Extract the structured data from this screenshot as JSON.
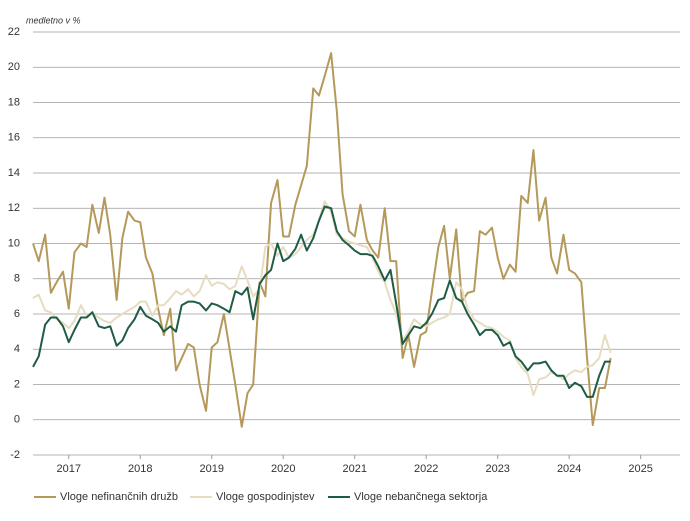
{
  "chart_data": {
    "type": "line",
    "y_label": "medletno v %",
    "x": [
      2016.5,
      2016.58,
      2016.67,
      2016.75,
      2016.83,
      2016.92,
      2017.0,
      2017.08,
      2017.17,
      2017.25,
      2017.33,
      2017.42,
      2017.5,
      2017.58,
      2017.67,
      2017.75,
      2017.83,
      2017.92,
      2018.0,
      2018.08,
      2018.17,
      2018.25,
      2018.33,
      2018.42,
      2018.5,
      2018.58,
      2018.67,
      2018.75,
      2018.83,
      2018.92,
      2019.0,
      2019.08,
      2019.17,
      2019.25,
      2019.33,
      2019.42,
      2019.5,
      2019.58,
      2019.67,
      2019.75,
      2019.83,
      2019.92,
      2020.0,
      2020.08,
      2020.17,
      2020.25,
      2020.33,
      2020.42,
      2020.5,
      2020.58,
      2020.67,
      2020.75,
      2020.83,
      2020.92,
      2021.0,
      2021.08,
      2021.17,
      2021.25,
      2021.33,
      2021.42,
      2021.5,
      2021.58,
      2021.67,
      2021.75,
      2021.83,
      2021.92,
      2022.0,
      2022.08,
      2022.17,
      2022.25,
      2022.33,
      2022.42,
      2022.5,
      2022.58,
      2022.67,
      2022.75,
      2022.83,
      2022.92,
      2023.0,
      2023.08,
      2023.17,
      2023.25,
      2023.33,
      2023.42,
      2023.5,
      2023.58,
      2023.67,
      2023.75,
      2023.83,
      2023.92,
      2024.0,
      2024.08,
      2024.17,
      2024.25,
      2024.33,
      2024.42,
      2024.5,
      2024.58
    ],
    "series": [
      {
        "name": "Vloge nefinančnih družb",
        "color": "#b5995a",
        "values": [
          10,
          9,
          10.5,
          7.2,
          7.8,
          8.4,
          6.3,
          9.5,
          10,
          9.8,
          12.2,
          10.6,
          12.6,
          10.5,
          6.8,
          10.3,
          11.8,
          11.3,
          11.2,
          9.2,
          8.3,
          6.3,
          4.8,
          6.3,
          2.8,
          3.5,
          4.3,
          4.1,
          2.0,
          0.5,
          4.1,
          4.4,
          6.0,
          4.0,
          2.0,
          -0.4,
          1.5,
          2.0,
          7.8,
          7.0,
          12.3,
          13.6,
          10.4,
          10.4,
          12.2,
          13.3,
          14.4,
          18.8,
          18.4,
          19.5,
          20.8,
          17.5,
          12.8,
          10.7,
          10.4,
          12.2,
          10.2,
          9.6,
          9.2,
          12.0,
          9.0,
          9.0,
          3.5,
          4.8,
          3.0,
          4.8,
          5.0,
          7.3,
          9.8,
          11.0,
          8.0,
          10.8,
          6.7,
          7.2,
          7.3,
          10.7,
          10.5,
          10.9,
          9.2,
          8.0,
          8.8,
          8.4,
          12.7,
          12.3,
          15.3,
          11.3,
          12.6,
          9.2,
          8.3,
          10.5,
          8.5,
          8.3,
          7.8,
          3.5,
          -0.3,
          1.8,
          1.8,
          3.5
        ]
      },
      {
        "name": "Vloge gospodinjstev",
        "color": "#e6dcc0",
        "values": [
          6.9,
          7.1,
          6.2,
          6.1,
          5.7,
          5.5,
          5.2,
          5.6,
          6.5,
          5.9,
          6.0,
          5.8,
          5.6,
          5.5,
          5.8,
          6.0,
          6.2,
          6.4,
          6.7,
          6.7,
          5.9,
          6.5,
          6.5,
          6.9,
          7.3,
          7.1,
          7.4,
          7.0,
          7.3,
          8.2,
          7.6,
          7.8,
          7.7,
          7.4,
          7.6,
          8.7,
          7.9,
          7.0,
          7.4,
          9.8,
          10.0,
          9.3,
          9.8,
          9.2,
          9.4,
          9.8,
          10.2,
          10.5,
          11.3,
          12.4,
          11.8,
          10.5,
          10.3,
          10.1,
          10.0,
          9.9,
          9.8,
          9.2,
          8.4,
          7.8,
          6.8,
          6.0,
          4.5,
          5.0,
          5.7,
          5.4,
          5.3,
          5.5,
          5.7,
          5.8,
          6.0,
          7.8,
          7.4,
          6.3,
          5.7,
          5.5,
          5.3,
          5.2,
          5.0,
          4.7,
          4.5,
          3.5,
          3.0,
          2.6,
          1.4,
          2.3,
          2.4,
          2.7,
          2.5,
          2.3,
          2.6,
          2.8,
          2.7,
          3.0,
          3.1,
          3.5,
          4.8,
          3.8
        ]
      },
      {
        "name": "Vloge nebančnega sektorja",
        "color": "#1e5c45",
        "values": [
          3.0,
          3.6,
          5.4,
          5.8,
          5.8,
          5.3,
          4.4,
          5.1,
          5.8,
          5.8,
          6.1,
          5.3,
          5.2,
          5.3,
          4.2,
          4.5,
          5.2,
          5.7,
          6.4,
          5.9,
          5.7,
          5.5,
          5.0,
          5.3,
          5.0,
          6.5,
          6.7,
          6.7,
          6.6,
          6.2,
          6.6,
          6.5,
          6.3,
          6.1,
          7.3,
          7.1,
          7.5,
          5.7,
          7.7,
          8.2,
          8.5,
          10.0,
          9.0,
          9.2,
          9.7,
          10.5,
          9.6,
          10.3,
          11.3,
          12.1,
          12.0,
          10.7,
          10.2,
          9.9,
          9.6,
          9.4,
          9.4,
          9.3,
          8.7,
          7.9,
          8.5,
          6.6,
          4.3,
          4.8,
          5.3,
          5.2,
          5.5,
          6.0,
          6.8,
          6.9,
          7.9,
          6.9,
          6.7,
          6.0,
          5.4,
          4.8,
          5.1,
          5.1,
          4.8,
          4.2,
          4.4,
          3.6,
          3.3,
          2.8,
          3.2,
          3.2,
          3.3,
          2.8,
          2.5,
          2.5,
          1.8,
          2.1,
          1.9,
          1.3,
          1.3,
          2.5,
          3.3,
          3.3
        ]
      }
    ],
    "xlim": [
      2016.5,
      2025.55
    ],
    "xticks": [
      2017,
      2018,
      2019,
      2020,
      2021,
      2022,
      2023,
      2024,
      2025
    ],
    "ylim": [
      -2,
      22
    ],
    "yticks": [
      -2,
      0,
      2,
      4,
      6,
      8,
      10,
      12,
      14,
      16,
      18,
      20,
      22
    ],
    "grid": true,
    "legend": "bottom"
  }
}
